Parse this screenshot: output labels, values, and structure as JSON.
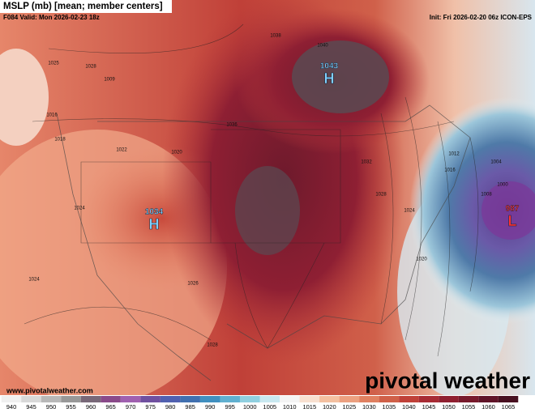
{
  "header": {
    "title": "MSLP (mb) [mean; member centers]",
    "valid": "F084 Valid: Mon 2026-02-23 18z",
    "init": "Init: Fri 2026-02-20 06z ICON-EPS"
  },
  "centers": [
    {
      "value": "1043",
      "symbol": "H"
    },
    {
      "value": "1034",
      "symbol": "H"
    },
    {
      "value": "987",
      "symbol": "L"
    }
  ],
  "contour_labels": [
    "1025",
    "1028",
    "1009",
    "1016",
    "1018",
    "1022",
    "1020",
    "1024",
    "1024",
    "1026",
    "1028",
    "1038",
    "1040",
    "1036",
    "1032",
    "1028",
    "1024",
    "1020",
    "1016",
    "1012",
    "1008",
    "1004",
    "1000"
  ],
  "watermark": {
    "url": "www.pivotalweather.com",
    "brand": "pivotal weather"
  },
  "colorbar": {
    "ticks": [
      940,
      945,
      950,
      955,
      960,
      965,
      970,
      975,
      980,
      985,
      990,
      995,
      1000,
      1005,
      1010,
      1015,
      1020,
      1025,
      1030,
      1035,
      1040,
      1045,
      1050,
      1055,
      1060,
      1065
    ]
  }
}
